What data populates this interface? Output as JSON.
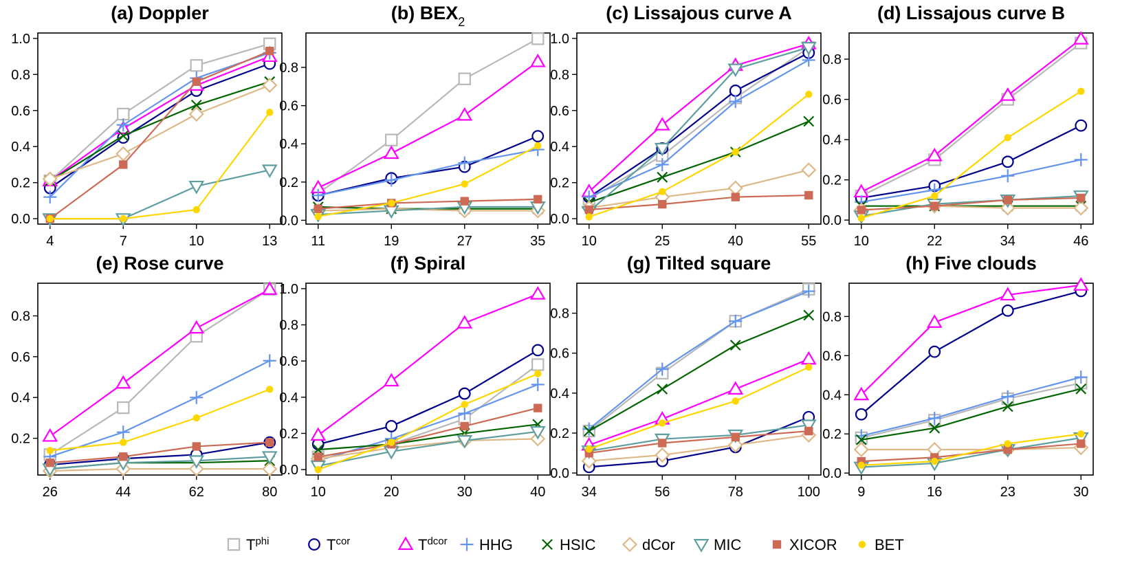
{
  "legend": [
    {
      "key": "Tphi",
      "base": "T",
      "sup": "phi",
      "color": "#b8b8b8",
      "marker": "square-open"
    },
    {
      "key": "Tcor",
      "base": "T",
      "sup": "cor",
      "color": "#00008b",
      "marker": "circle-open"
    },
    {
      "key": "Tdcor",
      "base": "T",
      "sup": "dcor",
      "color": "#ff00ff",
      "marker": "triangle-open"
    },
    {
      "key": "HHG",
      "base": "HHG",
      "sup": "",
      "color": "#6495ed",
      "marker": "plus"
    },
    {
      "key": "HSIC",
      "base": "HSIC",
      "sup": "",
      "color": "#006400",
      "marker": "cross"
    },
    {
      "key": "dCor",
      "base": "dCor",
      "sup": "",
      "color": "#deb887",
      "marker": "diamond-open"
    },
    {
      "key": "MIC",
      "base": "MIC",
      "sup": "",
      "color": "#5f9ea0",
      "marker": "triangle-down-open"
    },
    {
      "key": "XICOR",
      "base": "XICOR",
      "sup": "",
      "color": "#cd6a55",
      "marker": "square-filled"
    },
    {
      "key": "BET",
      "base": "BET",
      "sup": "",
      "color": "#ffd700",
      "marker": "circle-filled"
    }
  ],
  "chart_data": [
    {
      "type": "line",
      "title": "(a) Doppler",
      "title_sub": "",
      "x": [
        4,
        7,
        10,
        13
      ],
      "ylim": [
        -0.03,
        1.03
      ],
      "yticks": [
        0.0,
        0.2,
        0.4,
        0.6,
        0.8,
        1.0
      ],
      "ytick_labels": [
        "0.0",
        "0.2",
        "0.4",
        "0.6",
        "0.8",
        "1.0"
      ],
      "series": [
        {
          "key": "Tphi",
          "values": [
            0.21,
            0.58,
            0.85,
            0.97
          ]
        },
        {
          "key": "Tcor",
          "values": [
            0.17,
            0.45,
            0.71,
            0.86
          ]
        },
        {
          "key": "Tdcor",
          "values": [
            0.21,
            0.5,
            0.74,
            0.9
          ]
        },
        {
          "key": "HHG",
          "values": [
            0.12,
            0.52,
            0.78,
            0.92
          ]
        },
        {
          "key": "HSIC",
          "values": [
            0.21,
            0.46,
            0.63,
            0.76
          ]
        },
        {
          "key": "dCor",
          "values": [
            0.22,
            0.36,
            0.58,
            0.74
          ]
        },
        {
          "key": "MIC",
          "values": [
            0.0,
            0.0,
            0.18,
            0.27
          ]
        },
        {
          "key": "XICOR",
          "values": [
            0.0,
            0.3,
            0.76,
            0.93
          ]
        },
        {
          "key": "BET",
          "values": [
            0.0,
            0.0,
            0.05,
            0.59
          ]
        }
      ]
    },
    {
      "type": "line",
      "title": "(b) BEX",
      "title_sub": "2",
      "x": [
        11,
        19,
        27,
        35
      ],
      "ylim": [
        -0.02,
        0.98
      ],
      "yticks": [
        0.0,
        0.2,
        0.4,
        0.6,
        0.8
      ],
      "ytick_labels": [
        "0.0",
        "0.2",
        "0.4",
        "0.6",
        "0.8"
      ],
      "series": [
        {
          "key": "Tphi",
          "values": [
            0.14,
            0.42,
            0.74,
            0.95
          ]
        },
        {
          "key": "Tcor",
          "values": [
            0.13,
            0.22,
            0.28,
            0.44
          ]
        },
        {
          "key": "Tdcor",
          "values": [
            0.17,
            0.35,
            0.55,
            0.83
          ]
        },
        {
          "key": "HHG",
          "values": [
            0.13,
            0.21,
            0.3,
            0.37
          ]
        },
        {
          "key": "HSIC",
          "values": [
            0.07,
            0.06,
            0.06,
            0.06
          ]
        },
        {
          "key": "dCor",
          "values": [
            0.05,
            0.06,
            0.05,
            0.05
          ]
        },
        {
          "key": "MIC",
          "values": [
            0.03,
            0.05,
            0.07,
            0.07
          ]
        },
        {
          "key": "XICOR",
          "values": [
            0.06,
            0.09,
            0.1,
            0.11
          ]
        },
        {
          "key": "BET",
          "values": [
            0.02,
            0.09,
            0.19,
            0.39
          ]
        }
      ]
    },
    {
      "type": "line",
      "title": "(c) Lissajous curve A",
      "title_sub": "",
      "x": [
        10,
        25,
        40,
        55
      ],
      "ylim": [
        -0.03,
        1.03
      ],
      "yticks": [
        0.0,
        0.2,
        0.4,
        0.6,
        0.8,
        1.0
      ],
      "ytick_labels": [
        "0.0",
        "0.2",
        "0.4",
        "0.6",
        "0.8",
        "1.0"
      ],
      "series": [
        {
          "key": "Tphi",
          "values": [
            0.11,
            0.35,
            0.67,
            0.95
          ]
        },
        {
          "key": "Tcor",
          "values": [
            0.12,
            0.39,
            0.71,
            0.92
          ]
        },
        {
          "key": "Tdcor",
          "values": [
            0.15,
            0.52,
            0.85,
            0.97
          ]
        },
        {
          "key": "HHG",
          "values": [
            0.12,
            0.3,
            0.65,
            0.88
          ]
        },
        {
          "key": "HSIC",
          "values": [
            0.09,
            0.23,
            0.37,
            0.54
          ]
        },
        {
          "key": "dCor",
          "values": [
            0.06,
            0.12,
            0.17,
            0.27
          ]
        },
        {
          "key": "MIC",
          "values": [
            0.04,
            0.39,
            0.83,
            0.95
          ]
        },
        {
          "key": "XICOR",
          "values": [
            0.05,
            0.08,
            0.12,
            0.13
          ]
        },
        {
          "key": "BET",
          "values": [
            0.01,
            0.15,
            0.37,
            0.69
          ]
        }
      ]
    },
    {
      "type": "line",
      "title": "(d) Lissajous curve B",
      "title_sub": "",
      "x": [
        10,
        22,
        34,
        46
      ],
      "ylim": [
        -0.02,
        0.93
      ],
      "yticks": [
        0.0,
        0.2,
        0.4,
        0.6,
        0.8
      ],
      "ytick_labels": [
        "0.0",
        "0.2",
        "0.4",
        "0.6",
        "0.8"
      ],
      "series": [
        {
          "key": "Tphi",
          "values": [
            0.12,
            0.3,
            0.6,
            0.88
          ]
        },
        {
          "key": "Tcor",
          "values": [
            0.11,
            0.17,
            0.29,
            0.47
          ]
        },
        {
          "key": "Tdcor",
          "values": [
            0.14,
            0.32,
            0.62,
            0.9
          ]
        },
        {
          "key": "HHG",
          "values": [
            0.09,
            0.15,
            0.22,
            0.3
          ]
        },
        {
          "key": "HSIC",
          "values": [
            0.07,
            0.07,
            0.07,
            0.07
          ]
        },
        {
          "key": "dCor",
          "values": [
            0.05,
            0.07,
            0.06,
            0.06
          ]
        },
        {
          "key": "MIC",
          "values": [
            0.02,
            0.08,
            0.1,
            0.12
          ]
        },
        {
          "key": "XICOR",
          "values": [
            0.05,
            0.07,
            0.1,
            0.11
          ]
        },
        {
          "key": "BET",
          "values": [
            0.01,
            0.12,
            0.41,
            0.64
          ]
        }
      ]
    },
    {
      "type": "line",
      "title": "(e) Rose curve",
      "title_sub": "",
      "x": [
        26,
        44,
        62,
        80
      ],
      "ylim": [
        0.02,
        0.96
      ],
      "yticks": [
        0.2,
        0.4,
        0.6,
        0.8
      ],
      "ytick_labels": [
        "0.2",
        "0.4",
        "0.6",
        "0.8"
      ],
      "series": [
        {
          "key": "Tphi",
          "values": [
            0.12,
            0.35,
            0.7,
            0.93
          ]
        },
        {
          "key": "Tcor",
          "values": [
            0.07,
            0.1,
            0.12,
            0.18
          ]
        },
        {
          "key": "Tdcor",
          "values": [
            0.21,
            0.47,
            0.74,
            0.93
          ]
        },
        {
          "key": "HHG",
          "values": [
            0.11,
            0.23,
            0.4,
            0.58
          ]
        },
        {
          "key": "HSIC",
          "values": [
            0.05,
            0.08,
            0.08,
            0.09
          ]
        },
        {
          "key": "dCor",
          "values": [
            0.04,
            0.05,
            0.05,
            0.05
          ]
        },
        {
          "key": "MIC",
          "values": [
            0.05,
            0.08,
            0.09,
            0.11
          ]
        },
        {
          "key": "XICOR",
          "values": [
            0.08,
            0.11,
            0.16,
            0.18
          ]
        },
        {
          "key": "BET",
          "values": [
            0.14,
            0.18,
            0.3,
            0.44
          ]
        }
      ]
    },
    {
      "type": "line",
      "title": "(f) Spiral",
      "title_sub": "",
      "x": [
        10,
        20,
        30,
        40
      ],
      "ylim": [
        -0.03,
        1.03
      ],
      "yticks": [
        0.0,
        0.2,
        0.4,
        0.6,
        0.8,
        1.0
      ],
      "ytick_labels": [
        "0.0",
        "0.2",
        "0.4",
        "0.6",
        "0.8",
        "1.0"
      ],
      "series": [
        {
          "key": "Tphi",
          "values": [
            0.07,
            0.14,
            0.28,
            0.58
          ]
        },
        {
          "key": "Tcor",
          "values": [
            0.14,
            0.24,
            0.42,
            0.66
          ]
        },
        {
          "key": "Tdcor",
          "values": [
            0.19,
            0.49,
            0.81,
            0.97
          ]
        },
        {
          "key": "HHG",
          "values": [
            0.05,
            0.17,
            0.31,
            0.47
          ]
        },
        {
          "key": "HSIC",
          "values": [
            0.11,
            0.14,
            0.2,
            0.25
          ]
        },
        {
          "key": "dCor",
          "values": [
            0.06,
            0.12,
            0.16,
            0.17
          ]
        },
        {
          "key": "MIC",
          "values": [
            0.02,
            0.1,
            0.16,
            0.21
          ]
        },
        {
          "key": "XICOR",
          "values": [
            0.07,
            0.14,
            0.24,
            0.34
          ]
        },
        {
          "key": "BET",
          "values": [
            0.0,
            0.15,
            0.36,
            0.53
          ]
        }
      ]
    },
    {
      "type": "line",
      "title": "(g) Tilted square",
      "title_sub": "",
      "x": [
        34,
        56,
        78,
        100
      ],
      "ylim": [
        -0.01,
        0.95
      ],
      "yticks": [
        0.0,
        0.2,
        0.4,
        0.6,
        0.8
      ],
      "ytick_labels": [
        "0.0",
        "0.2",
        "0.4",
        "0.6",
        "0.8"
      ],
      "series": [
        {
          "key": "Tphi",
          "values": [
            0.21,
            0.5,
            0.76,
            0.92
          ]
        },
        {
          "key": "Tcor",
          "values": [
            0.03,
            0.06,
            0.13,
            0.28
          ]
        },
        {
          "key": "Tdcor",
          "values": [
            0.14,
            0.27,
            0.42,
            0.57
          ]
        },
        {
          "key": "HHG",
          "values": [
            0.22,
            0.52,
            0.76,
            0.91
          ]
        },
        {
          "key": "HSIC",
          "values": [
            0.21,
            0.42,
            0.64,
            0.79
          ]
        },
        {
          "key": "dCor",
          "values": [
            0.06,
            0.09,
            0.14,
            0.19
          ]
        },
        {
          "key": "MIC",
          "values": [
            0.11,
            0.17,
            0.19,
            0.24
          ]
        },
        {
          "key": "XICOR",
          "values": [
            0.1,
            0.15,
            0.18,
            0.21
          ]
        },
        {
          "key": "BET",
          "values": [
            0.12,
            0.25,
            0.36,
            0.53
          ]
        }
      ]
    },
    {
      "type": "line",
      "title": "(h) Five clouds",
      "title_sub": "",
      "x": [
        9,
        16,
        23,
        30
      ],
      "ylim": [
        -0.01,
        0.97
      ],
      "yticks": [
        0.0,
        0.2,
        0.4,
        0.6,
        0.8
      ],
      "ytick_labels": [
        "0.0",
        "0.2",
        "0.4",
        "0.6",
        "0.8"
      ],
      "series": [
        {
          "key": "Tphi",
          "values": [
            0.18,
            0.27,
            0.38,
            0.46
          ]
        },
        {
          "key": "Tcor",
          "values": [
            0.3,
            0.62,
            0.83,
            0.93
          ]
        },
        {
          "key": "Tdcor",
          "values": [
            0.4,
            0.77,
            0.91,
            0.96
          ]
        },
        {
          "key": "HHG",
          "values": [
            0.19,
            0.28,
            0.39,
            0.49
          ]
        },
        {
          "key": "HSIC",
          "values": [
            0.17,
            0.23,
            0.34,
            0.43
          ]
        },
        {
          "key": "dCor",
          "values": [
            0.12,
            0.12,
            0.12,
            0.13
          ]
        },
        {
          "key": "MIC",
          "values": [
            0.03,
            0.05,
            0.12,
            0.18
          ]
        },
        {
          "key": "XICOR",
          "values": [
            0.06,
            0.08,
            0.12,
            0.15
          ]
        },
        {
          "key": "BET",
          "values": [
            0.04,
            0.06,
            0.15,
            0.2
          ]
        }
      ]
    }
  ]
}
